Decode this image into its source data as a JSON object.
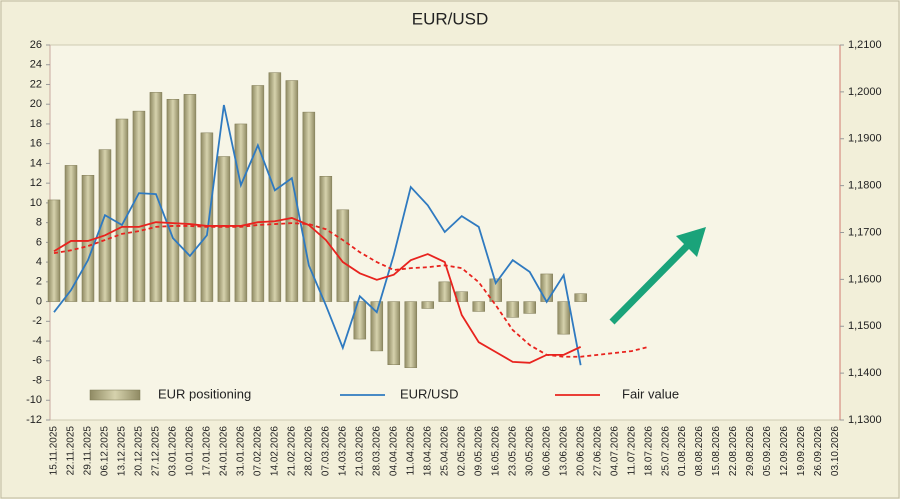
{
  "chart_data": {
    "type": "bar",
    "title": "EUR/USD",
    "categories": [
      "15.11.2025",
      "22.11.2025",
      "29.11.2025",
      "06.12.2025",
      "13.12.2025",
      "20.12.2025",
      "27.12.2025",
      "03.01.2026",
      "10.01.2026",
      "17.01.2026",
      "24.01.2026",
      "31.01.2026",
      "07.02.2026",
      "14.02.2026",
      "21.02.2026",
      "28.02.2026",
      "07.03.2026",
      "14.03.2026",
      "21.03.2026",
      "28.03.2026",
      "04.04.2026",
      "11.04.2026",
      "18.04.2026",
      "25.04.2026",
      "02.05.2026",
      "09.05.2026",
      "16.05.2026",
      "23.05.2026",
      "30.05.2026",
      "06.06.2026",
      "13.06.2026",
      "20.06.2026",
      "27.06.2026",
      "04.07.2026",
      "11.07.2026",
      "18.07.2026",
      "25.07.2026",
      "01.08.2026",
      "08.08.2026",
      "15.08.2026",
      "22.08.2026",
      "29.08.2026",
      "05.09.2026",
      "12.09.2026",
      "19.09.2026",
      "26.09.2026",
      "03.10.2026"
    ],
    "series": [
      {
        "name": "EUR positioning",
        "type": "bar",
        "color": "#b8b38c",
        "values": [
          10.3,
          13.8,
          12.8,
          15.4,
          18.5,
          19.3,
          21.2,
          20.5,
          21.0,
          17.1,
          14.7,
          18.0,
          21.9,
          23.2,
          22.4,
          19.2,
          12.7,
          9.3,
          -3.8,
          -5.0,
          -6.4,
          -6.7,
          -0.7,
          2.0,
          1.0,
          -1.0,
          2.3,
          -1.6,
          -1.2,
          2.8,
          -3.3,
          0.8,
          null,
          null,
          null,
          null,
          null,
          null,
          null,
          null,
          null,
          null,
          null,
          null,
          null,
          null,
          null
        ]
      },
      {
        "name": "EUR/USD",
        "type": "line",
        "axis": "y2",
        "color": "#2f7ac0",
        "values": [
          1.153,
          1.1577,
          1.1641,
          1.1737,
          1.1716,
          1.1784,
          1.1782,
          1.1688,
          1.165,
          1.1694,
          1.1972,
          1.1801,
          1.1886,
          1.179,
          1.1816,
          1.163,
          1.1545,
          1.1454,
          1.1564,
          1.153,
          1.1652,
          1.1797,
          1.1758,
          1.1701,
          1.1735,
          1.1712,
          1.1592,
          1.1641,
          1.1616,
          1.1552,
          1.1609,
          1.1417,
          null,
          null,
          null,
          null,
          null,
          null,
          null,
          null,
          null,
          null,
          null,
          null,
          null,
          null,
          null
        ]
      },
      {
        "name": "Fair value",
        "type": "line",
        "axis": "y2",
        "color": "#e8231e",
        "values": [
          1.166,
          1.1682,
          1.1682,
          1.1694,
          1.1712,
          1.1712,
          1.1722,
          1.172,
          1.1718,
          1.1714,
          1.1714,
          1.1714,
          1.1722,
          1.1724,
          1.1731,
          1.1716,
          1.1684,
          1.1637,
          1.1613,
          1.1599,
          1.161,
          1.1641,
          1.1654,
          1.1637,
          1.1524,
          1.1466,
          1.1445,
          1.1424,
          1.1422,
          1.1439,
          1.1439,
          1.1456,
          null,
          null,
          null,
          null,
          null,
          null,
          null,
          null,
          null,
          null,
          null,
          null,
          null,
          null,
          null
        ]
      },
      {
        "type": "line",
        "axis": "y2",
        "dashed": true,
        "color": "#e8231e",
        "values": [
          1.1656,
          1.1662,
          1.1671,
          1.1684,
          1.1697,
          1.1703,
          1.1712,
          1.1714,
          1.1714,
          1.1712,
          1.1712,
          1.1712,
          1.1716,
          1.1718,
          1.172,
          1.1718,
          1.1707,
          1.1684,
          1.1658,
          1.1637,
          1.162,
          1.1624,
          1.1626,
          1.163,
          1.1624,
          1.1594,
          1.1545,
          1.1492,
          1.146,
          1.1439,
          1.1435,
          1.1435,
          1.1439,
          1.1443,
          1.1447,
          1.1456,
          null,
          null,
          null,
          null,
          null,
          null,
          null,
          null,
          null,
          null,
          null
        ]
      }
    ],
    "ylim": [
      -12,
      26
    ],
    "yticks": [
      -12,
      -10,
      -8,
      -6,
      -4,
      -2,
      0,
      2,
      4,
      6,
      8,
      10,
      12,
      14,
      16,
      18,
      20,
      22,
      24,
      26
    ],
    "y2lim": [
      1.13,
      1.21
    ],
    "y2ticks": [
      {
        "value": 1.13,
        "label": "1,1300"
      },
      {
        "value": 1.14,
        "label": "1,1400"
      },
      {
        "value": 1.15,
        "label": "1,1500"
      },
      {
        "value": 1.16,
        "label": "1,1600"
      },
      {
        "value": 1.17,
        "label": "1,1700"
      },
      {
        "value": 1.18,
        "label": "1,1800"
      },
      {
        "value": 1.19,
        "label": "1,1900"
      },
      {
        "value": 1.2,
        "label": "1,2000"
      },
      {
        "value": 1.21,
        "label": "1,2100"
      }
    ],
    "grid": false
  }
}
